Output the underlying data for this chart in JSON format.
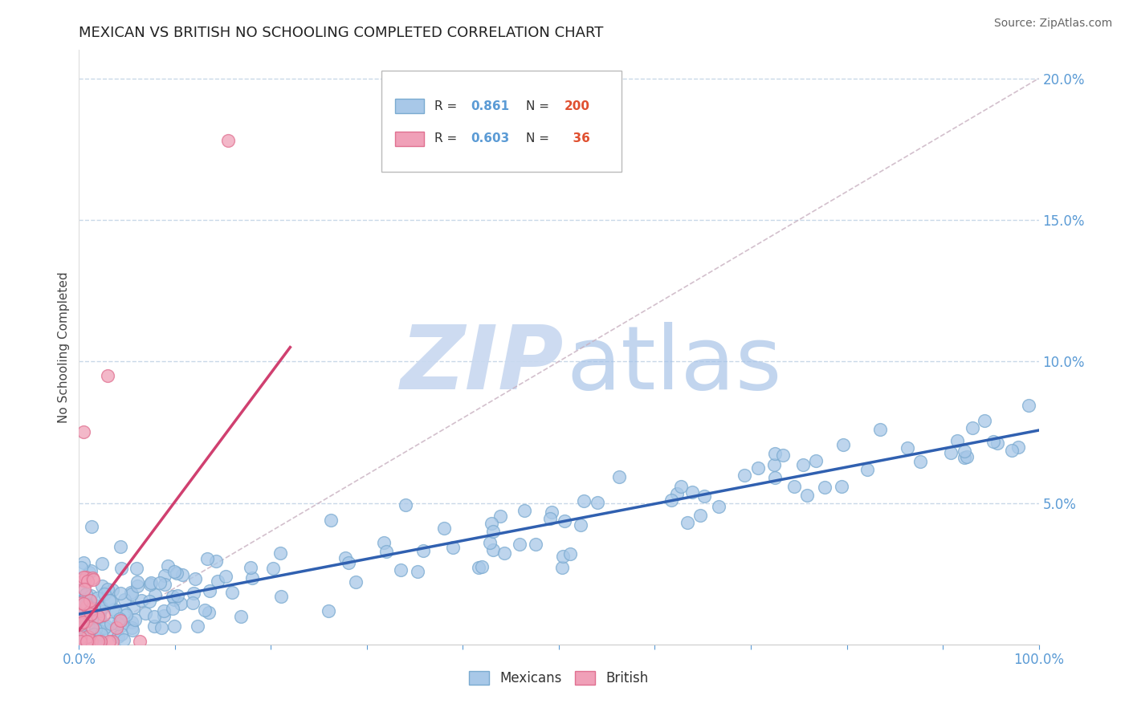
{
  "title": "MEXICAN VS BRITISH NO SCHOOLING COMPLETED CORRELATION CHART",
  "source": "Source: ZipAtlas.com",
  "ylabel": "No Schooling Completed",
  "xlim": [
    0,
    1.0
  ],
  "ylim": [
    0,
    0.21
  ],
  "ytick_vals": [
    0.05,
    0.1,
    0.15,
    0.2
  ],
  "ytick_labels": [
    "5.0%",
    "10.0%",
    "15.0%",
    "20.0%"
  ],
  "xtick_vals": [
    0,
    0.1,
    0.2,
    0.3,
    0.4,
    0.5,
    0.6,
    0.7,
    0.8,
    0.9,
    1.0
  ],
  "xtick_labels": [
    "0.0%",
    "",
    "",
    "",
    "",
    "",
    "",
    "",
    "",
    "",
    "100.0%"
  ],
  "mexican_color": "#a8c8e8",
  "british_color": "#f0a0b8",
  "mexican_edge": "#7aaad0",
  "british_edge": "#e07090",
  "mexican_line_color": "#3060b0",
  "british_line_color": "#d04070",
  "diag_color": "#c8b0c0",
  "R_mexican": 0.861,
  "N_mexican": 200,
  "R_british": 0.603,
  "N_british": 36,
  "title_fontsize": 13,
  "tick_color": "#5b9bd5",
  "grid_color": "#c8d8e8",
  "watermark_zip_color": "#c8d8f0",
  "watermark_atlas_color": "#a8c4e8"
}
